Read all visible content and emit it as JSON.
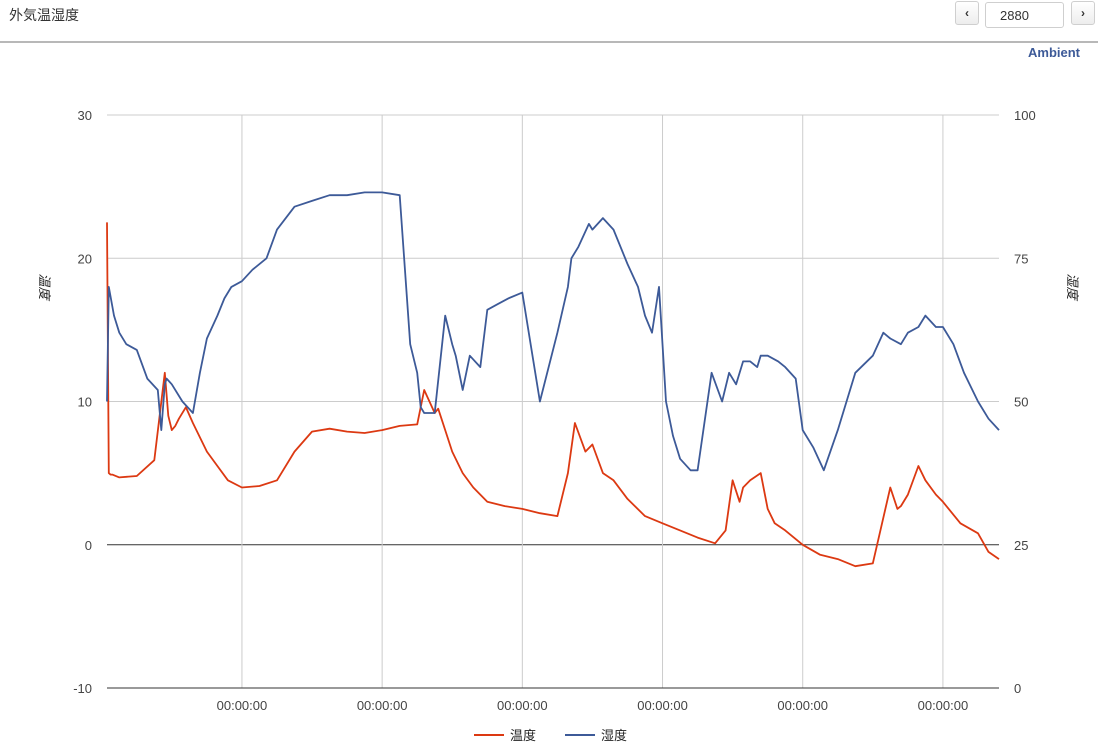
{
  "header": {
    "title": "外気温湿度",
    "count_value": "2880",
    "prev_label": "‹",
    "next_label": "›"
  },
  "chart_data": {
    "type": "line",
    "title": "Ambient",
    "y_left": {
      "label": "温度",
      "ylim": [
        -10,
        30
      ],
      "ticks": [
        "-10",
        "0",
        "10",
        "20",
        "30"
      ]
    },
    "y_right": {
      "label": "湿度",
      "ylim": [
        0,
        100
      ],
      "ticks": [
        "0",
        "25",
        "50",
        "75",
        "100"
      ]
    },
    "x_ticks": [
      "00:00:00",
      "00:00:00",
      "00:00:00",
      "00:00:00",
      "00:00:00",
      "00:00:00"
    ],
    "x_tick_index": [
      3.0,
      7.0,
      11.0,
      15.0,
      19.0,
      23.0
    ],
    "x_range": [
      -0.85,
      24.6
    ],
    "grid": true,
    "legend": "bottom",
    "series": [
      {
        "name": "温度",
        "axis": "left",
        "color": "#dc3912",
        "x": [
          -0.85,
          -0.8,
          -0.75,
          -0.7,
          -0.5,
          0.0,
          0.5,
          0.8,
          0.9,
          1.0,
          1.1,
          1.2,
          1.4,
          1.6,
          2.0,
          2.3,
          2.6,
          3.0,
          3.5,
          4.0,
          4.5,
          5.0,
          5.5,
          6.0,
          6.5,
          7.0,
          7.5,
          8.0,
          8.2,
          8.5,
          8.6,
          8.8,
          9.0,
          9.2,
          9.3,
          9.6,
          10.0,
          10.5,
          11.0,
          11.5,
          12.0,
          12.3,
          12.5,
          12.8,
          13.0,
          13.3,
          13.6,
          14.0,
          14.5,
          15.0,
          15.5,
          16.0,
          16.5,
          16.8,
          17.0,
          17.2,
          17.3,
          17.5,
          17.8,
          18.0,
          18.2,
          18.5,
          19.0,
          19.5,
          20.0,
          20.5,
          21.0,
          21.5,
          21.7,
          21.8,
          22.0,
          22.3,
          22.5,
          22.8,
          23.0,
          23.5,
          24.0,
          24.3,
          24.6
        ],
        "y": [
          22.5,
          5.0,
          4.9,
          4.9,
          4.7,
          4.8,
          5.9,
          12.0,
          9.0,
          8.0,
          8.3,
          8.8,
          9.6,
          8.5,
          6.5,
          5.5,
          4.5,
          4.0,
          4.1,
          4.5,
          6.5,
          7.9,
          8.1,
          7.9,
          7.8,
          8.0,
          8.3,
          8.4,
          10.8,
          9.2,
          9.5,
          8.0,
          6.5,
          5.5,
          5.0,
          4.0,
          3.0,
          2.7,
          2.5,
          2.2,
          2.0,
          5.0,
          8.5,
          6.5,
          7.0,
          5.0,
          4.5,
          3.2,
          2.0,
          1.5,
          1.0,
          0.5,
          0.1,
          1.0,
          4.5,
          3.0,
          4.0,
          4.5,
          5.0,
          2.5,
          1.5,
          1.0,
          0.0,
          -0.7,
          -1.0,
          -1.5,
          -1.3,
          4.0,
          2.5,
          2.7,
          3.5,
          5.5,
          4.5,
          3.5,
          3.0,
          1.5,
          0.8,
          -0.5,
          -1.0
        ]
      },
      {
        "name": "湿度",
        "axis": "right",
        "color": "#3d5a98",
        "x": [
          -0.85,
          -0.8,
          -0.65,
          -0.5,
          -0.3,
          0.0,
          0.3,
          0.6,
          0.7,
          0.8,
          0.85,
          1.0,
          1.3,
          1.6,
          1.8,
          2.0,
          2.3,
          2.5,
          2.7,
          3.0,
          3.3,
          3.7,
          4.0,
          4.5,
          5.0,
          5.5,
          6.0,
          6.5,
          7.0,
          7.5,
          7.8,
          8.0,
          8.1,
          8.2,
          8.5,
          8.8,
          9.0,
          9.1,
          9.2,
          9.3,
          9.5,
          9.8,
          10.0,
          10.3,
          10.6,
          11.0,
          11.5,
          12.0,
          12.3,
          12.4,
          12.6,
          12.9,
          13.0,
          13.3,
          13.6,
          14.0,
          14.3,
          14.5,
          14.7,
          14.9,
          15.1,
          15.3,
          15.5,
          15.8,
          16.0,
          16.4,
          16.7,
          16.9,
          17.1,
          17.3,
          17.5,
          17.7,
          17.8,
          18.0,
          18.3,
          18.5,
          18.8,
          19.0,
          19.3,
          19.6,
          20.0,
          20.5,
          21.0,
          21.3,
          21.5,
          21.8,
          22.0,
          22.3,
          22.5,
          22.8,
          23.0,
          23.3,
          23.6,
          24.0,
          24.3,
          24.6
        ],
        "y": [
          50,
          70,
          65,
          62,
          60,
          59,
          54,
          52,
          45,
          53,
          54,
          53,
          50,
          48,
          55,
          61,
          65,
          68,
          70,
          71,
          73,
          75,
          80,
          84,
          85,
          86,
          86,
          86.5,
          86.5,
          86,
          60,
          55,
          49,
          48,
          48,
          65,
          60,
          58,
          55,
          52,
          58,
          56,
          66,
          67,
          68,
          69,
          50,
          62,
          70,
          75,
          77,
          81,
          80,
          82,
          80,
          74,
          70,
          65,
          62,
          70,
          50,
          44,
          40,
          38,
          38,
          55,
          50,
          55,
          53,
          57,
          57,
          56,
          58,
          58,
          57,
          56,
          54,
          45,
          42,
          38,
          45,
          55,
          58,
          62,
          61,
          60,
          62,
          63,
          65,
          63,
          63,
          60,
          55,
          50,
          47,
          45
        ]
      }
    ]
  }
}
